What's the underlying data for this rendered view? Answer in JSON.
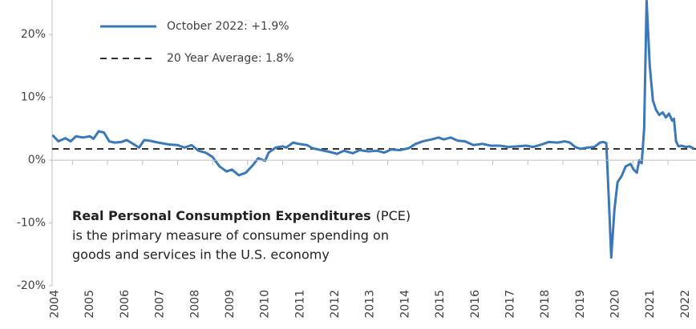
{
  "chart_data": {
    "type": "line",
    "x": [
      2004.43,
      2004.6,
      2004.8,
      2004.95,
      2005.1,
      2005.3,
      2005.5,
      2005.6,
      2005.75,
      2005.9,
      2006.05,
      2006.2,
      2006.4,
      2006.55,
      2006.7,
      2006.9,
      2007.05,
      2007.2,
      2007.45,
      2007.75,
      2008.0,
      2008.2,
      2008.4,
      2008.6,
      2008.8,
      2009.0,
      2009.2,
      2009.4,
      2009.55,
      2009.75,
      2009.95,
      2010.15,
      2010.3,
      2010.5,
      2010.6,
      2010.8,
      2011.0,
      2011.1,
      2011.3,
      2011.45,
      2011.7,
      2011.85,
      2012.1,
      2012.35,
      2012.55,
      2012.75,
      2013.0,
      2013.2,
      2013.45,
      2013.7,
      2013.9,
      2014.1,
      2014.35,
      2014.6,
      2014.8,
      2015.0,
      2015.25,
      2015.45,
      2015.6,
      2015.8,
      2016.0,
      2016.2,
      2016.45,
      2016.7,
      2016.95,
      2017.2,
      2017.45,
      2017.7,
      2017.95,
      2018.15,
      2018.4,
      2018.6,
      2018.85,
      2019.05,
      2019.2,
      2019.35,
      2019.5,
      2019.7,
      2019.9,
      2020.06,
      2020.15,
      2020.24,
      2020.31,
      2020.38,
      2020.47,
      2020.56,
      2020.68,
      2020.79,
      2020.93,
      2021.02,
      2021.11,
      2021.18,
      2021.25,
      2021.32,
      2021.39,
      2021.48,
      2021.57,
      2021.66,
      2021.75,
      2021.85,
      2021.94,
      2022.03,
      2022.12,
      2022.17,
      2022.23,
      2022.3,
      2022.39,
      2022.51,
      2022.62,
      2022.71,
      2022.75
    ],
    "series": [
      {
        "name": "October 2022:  +1.9%",
        "color": "#3a78b8",
        "values": [
          4.0,
          3.0,
          3.5,
          3.0,
          3.8,
          3.6,
          3.8,
          3.4,
          4.6,
          4.4,
          3.0,
          2.8,
          2.9,
          3.2,
          2.7,
          2.0,
          3.2,
          3.1,
          2.8,
          2.5,
          2.4,
          2.0,
          2.4,
          1.5,
          1.2,
          0.5,
          -1.0,
          -1.8,
          -1.5,
          -2.4,
          -2.0,
          -0.8,
          0.3,
          -0.1,
          1.2,
          2.0,
          2.2,
          2.0,
          2.8,
          2.6,
          2.4,
          1.9,
          1.6,
          1.3,
          1.0,
          1.5,
          1.1,
          1.6,
          1.4,
          1.5,
          1.2,
          1.7,
          1.6,
          1.9,
          2.6,
          3.0,
          3.3,
          3.6,
          3.3,
          3.6,
          3.1,
          3.0,
          2.4,
          2.6,
          2.3,
          2.3,
          2.1,
          2.2,
          2.3,
          2.1,
          2.5,
          2.9,
          2.8,
          3.0,
          2.8,
          2.1,
          1.8,
          2.0,
          2.1,
          2.8,
          2.9,
          2.7,
          -6.0,
          -15.5,
          -8.0,
          -3.5,
          -2.5,
          -1.0,
          -0.6,
          -1.5,
          -2.0,
          0.0,
          -0.5,
          5.0,
          25.4,
          15.0,
          9.5,
          8.0,
          7.2,
          7.6,
          6.8,
          7.4,
          6.3,
          6.6,
          3.0,
          2.2,
          2.3,
          2.1,
          2.2,
          1.9,
          1.9
        ]
      }
    ],
    "reference_lines": [
      {
        "name": "20 Year Average: 1.8%",
        "value": 1.8,
        "color": "#333333"
      }
    ],
    "annotation": {
      "title": "Real Personal Consumption Expenditures",
      "abbreviation": "(PCE)",
      "lines": [
        "is the primary measure of consumer spending on",
        "goods and services in the U.S. economy"
      ]
    },
    "xlim": [
      2004.42,
      2022.8
    ],
    "xticks": [
      2004,
      2005,
      2006,
      2007,
      2008,
      2009,
      2010,
      2011,
      2012,
      2013,
      2014,
      2015,
      2016,
      2017,
      2018,
      2019,
      2020,
      2021,
      2022
    ],
    "ylim": [
      -20,
      25.5
    ],
    "yticks": [
      {
        "value": -20,
        "label": "-20%"
      },
      {
        "value": -10,
        "label": "-10%"
      },
      {
        "value": 0,
        "label": "0%"
      },
      {
        "value": 10,
        "label": "10%"
      },
      {
        "value": 20,
        "label": "20%"
      }
    ]
  }
}
